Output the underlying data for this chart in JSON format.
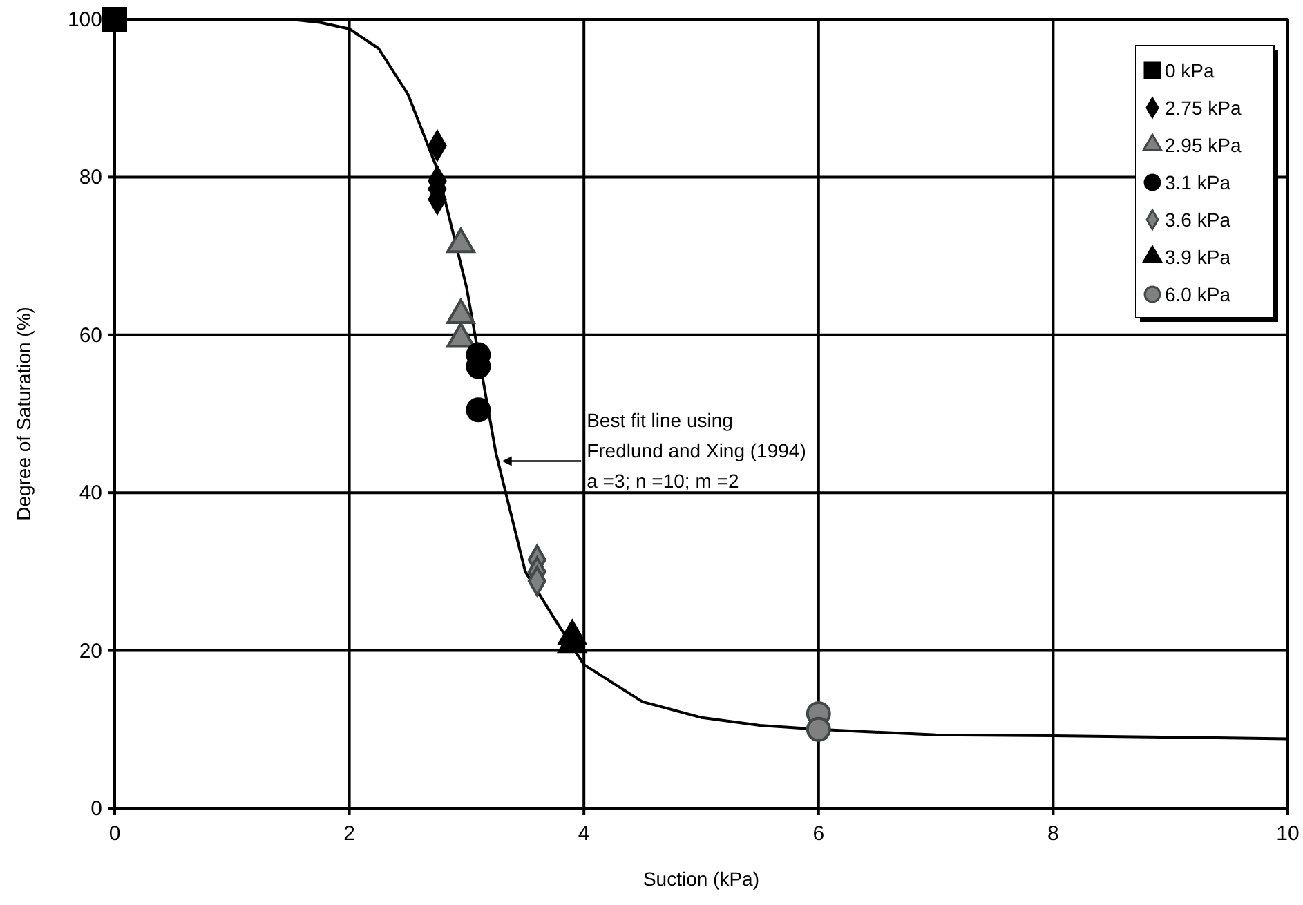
{
  "chart_data": {
    "type": "scatter",
    "xlabel": "Suction (kPa)",
    "ylabel": "Degree of Saturation (%)",
    "xlim": [
      0,
      10
    ],
    "ylim": [
      0,
      100
    ],
    "xticks": [
      0,
      2,
      4,
      6,
      8,
      10
    ],
    "yticks": [
      0,
      20,
      40,
      60,
      80,
      100
    ],
    "grid": true,
    "legend": "top right",
    "annotations": [
      "Best fit line using\nFredlund and Xing (1994)\na =3; n =10; m =2"
    ],
    "series": [
      {
        "type": "line",
        "marker": "none",
        "color": "#000000",
        "x": [
          0,
          1,
          1.5,
          1.75,
          2,
          2.25,
          2.5,
          2.75,
          3,
          3.25,
          3.5,
          3.75,
          4,
          4.5,
          5,
          5.5,
          6,
          7,
          8,
          10
        ],
        "values": [
          100,
          100,
          100,
          99.6,
          98.8,
          96.3,
          90.5,
          81,
          66,
          45,
          30,
          24,
          18.2,
          13.5,
          11.5,
          10.5,
          10,
          9.3,
          9.2,
          8.8
        ]
      },
      {
        "name": "0 kPa",
        "marker": "square",
        "color": "#000000",
        "x": [
          0
        ],
        "values": [
          100
        ]
      },
      {
        "name": "2.75 kPa",
        "marker": "diamond",
        "color": "#000000",
        "x": [
          2.75,
          2.75,
          2.75,
          2.75
        ],
        "values": [
          84,
          79.5,
          78.5,
          77.2
        ]
      },
      {
        "name": "2.95 kPa",
        "marker": "triangle",
        "color": "#808080",
        "x": [
          2.95,
          2.95,
          2.95
        ],
        "values": [
          71.5,
          62.5,
          59.5
        ]
      },
      {
        "name": "3.1 kPa",
        "marker": "circle",
        "color": "#000000",
        "x": [
          3.1,
          3.1,
          3.1
        ],
        "values": [
          57.5,
          56,
          50.5
        ]
      },
      {
        "name": "3.6 kPa",
        "marker": "diamond",
        "color": "#808080",
        "x": [
          3.6,
          3.6,
          3.6
        ],
        "values": [
          31.5,
          30,
          28.8
        ]
      },
      {
        "name": "3.9 kPa",
        "marker": "triangle",
        "color": "#000000",
        "x": [
          3.9,
          3.9
        ],
        "values": [
          21.8,
          20.8
        ]
      },
      {
        "name": "6.0 kPa",
        "marker": "circle",
        "color": "#808080",
        "x": [
          6,
          6
        ],
        "values": [
          12,
          10
        ]
      }
    ]
  }
}
